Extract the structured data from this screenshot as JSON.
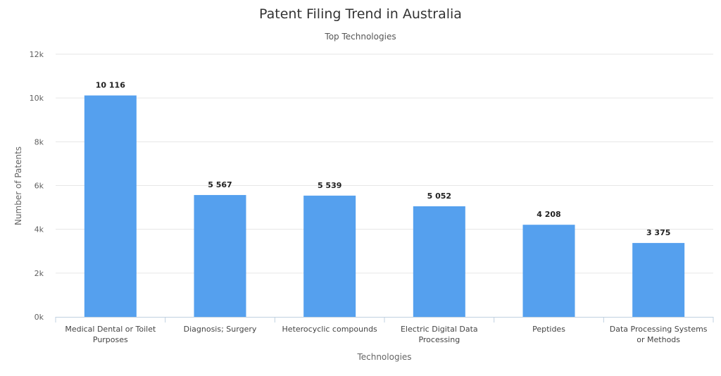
{
  "chart_data": {
    "type": "bar",
    "title": "Patent Filing Trend in Australia",
    "subtitle": "Top Technologies",
    "xlabel": "Technologies",
    "ylabel": "Number of Patents",
    "categories": [
      "Medical Dental or Toilet Purposes",
      "Diagnosis; Surgery",
      "Heterocyclic compounds",
      "Electric Digital Data Processing",
      "Peptides",
      "Data Processing Systems or Methods"
    ],
    "values": [
      10116,
      5567,
      5539,
      5052,
      4208,
      3375
    ],
    "data_labels": [
      "10 116",
      "5 567",
      "5 539",
      "5 052",
      "4 208",
      "3 375"
    ],
    "ylim": [
      0,
      12000
    ],
    "yticks": [
      0,
      2000,
      4000,
      6000,
      8000,
      10000,
      12000
    ],
    "ytick_labels": [
      "0k",
      "2k",
      "4k",
      "6k",
      "8k",
      "10k",
      "12k"
    ],
    "bar_color": "#55a0ee",
    "grid": true,
    "legend": "none"
  }
}
